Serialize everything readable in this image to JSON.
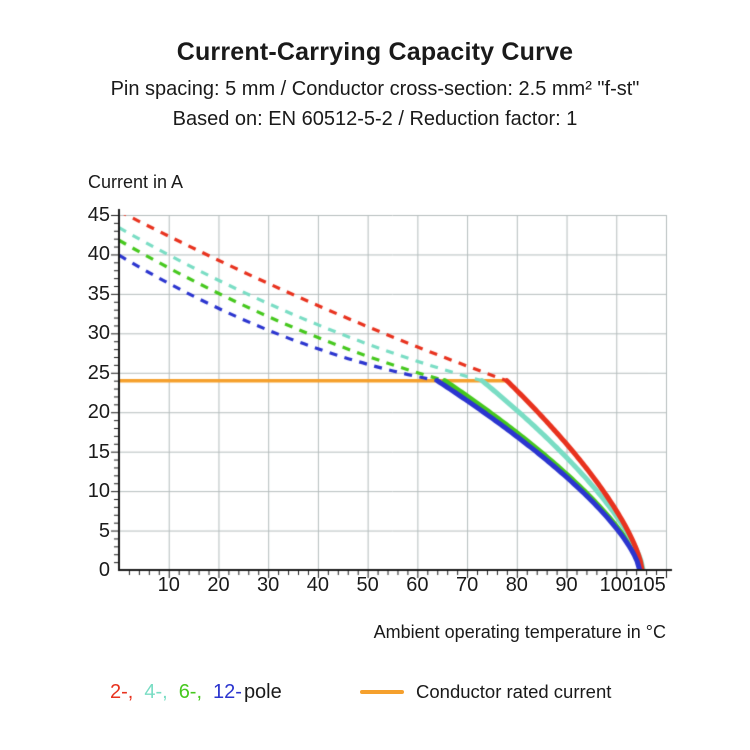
{
  "header": {
    "title": "Current-Carrying Capacity Curve",
    "subtitle_line1": "Pin spacing: 5 mm / Conductor cross-section: 2.5 mm² \"f-st\"",
    "subtitle_line2": "Based on: EN 60512-5-2 / Reduction factor: 1"
  },
  "chart_data": {
    "type": "line",
    "title": "Current-Carrying Capacity Curve",
    "xlabel": "Ambient operating temperature in °C",
    "ylabel": "Current in A",
    "xlim": [
      0,
      110
    ],
    "ylim": [
      0,
      45
    ],
    "x_major_ticks": [
      10,
      20,
      30,
      40,
      50,
      60,
      70,
      80,
      90,
      100,
      105
    ],
    "y_major_ticks": [
      45,
      40,
      35,
      30,
      25,
      20,
      15,
      10,
      5,
      0
    ],
    "x_minor_step": 2,
    "y_minor_step": 1,
    "grid": true,
    "grid_step_x": 10,
    "grid_step_y": 5,
    "colors": {
      "grid": "#b5bdbd",
      "axis": "#1a1a1a",
      "red": "#e8321e",
      "cyan": "#7addc4",
      "green": "#46c81e",
      "blue": "#2b35cf",
      "orange": "#f5a02d"
    },
    "rated_current": {
      "label": "Conductor rated current",
      "value_A": 24,
      "x_start": 0,
      "x_end": 78,
      "color": "#f5a02d"
    },
    "series": [
      {
        "name": "6-pole",
        "color": "#46c81e",
        "dashed_points": [
          [
            0,
            41.8
          ],
          [
            33,
            31.3
          ],
          [
            65.5,
            24
          ]
        ],
        "solid": {
          "x_start": 65.5,
          "x_end": 104.9,
          "y_at_start": 24,
          "exponent": 0.7
        }
      },
      {
        "name": "4-pole",
        "color": "#7addc4",
        "dashed_points": [
          [
            0,
            43.4
          ],
          [
            36.5,
            32.0
          ],
          [
            73,
            24
          ]
        ],
        "solid": {
          "x_start": 73,
          "x_end": 105.4,
          "y_at_start": 24,
          "exponent": 0.7
        }
      },
      {
        "name": "2-pole",
        "color": "#e8321e",
        "dashed_points": [
          [
            0,
            45.5
          ],
          [
            39,
            33.8
          ],
          [
            78,
            24
          ]
        ],
        "solid": {
          "x_start": 78,
          "x_end": 105.2,
          "y_at_start": 24,
          "exponent": 0.7
        }
      },
      {
        "name": "12-pole",
        "color": "#2b35cf",
        "dashed_points": [
          [
            0,
            39.9
          ],
          [
            32,
            29.9
          ],
          [
            64,
            24
          ]
        ],
        "solid": {
          "x_start": 64,
          "x_end": 104.7,
          "y_at_start": 24,
          "exponent": 0.7
        }
      }
    ],
    "legend_position": "bottom"
  },
  "legend": {
    "pole_items": [
      {
        "label": "2-,",
        "color": "#e8321e"
      },
      {
        "label": "4-,",
        "color": "#7addc4"
      },
      {
        "label": "6-,",
        "color": "#46c81e"
      },
      {
        "label": "12-",
        "color": "#2b35cf"
      },
      {
        "label": "pole",
        "color": "#1a1a1a"
      }
    ],
    "rated": {
      "label": "Conductor rated current",
      "color": "#f5a02d"
    }
  }
}
